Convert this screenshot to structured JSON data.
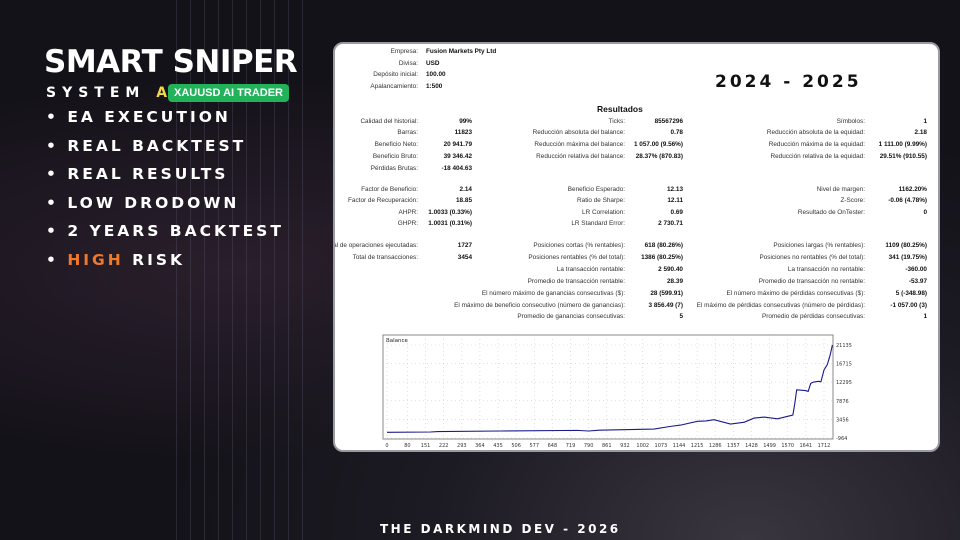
{
  "promo": {
    "title": "SMART SNIPER",
    "system": "SYSTEM",
    "ai": "AI",
    "badge": "XAUUSD AI TRADER",
    "bullets": [
      {
        "text": "EA EXECUTION"
      },
      {
        "text": "REAL BACKTEST"
      },
      {
        "text": "REAL RESULTS"
      },
      {
        "text": "LOW DRODOWN"
      },
      {
        "text": "2 YEARS BACKTEST"
      },
      {
        "hi": "HIGH",
        "text": " RISK"
      }
    ],
    "footer": "THE DARKMIND DEV - 2026",
    "accent": "#22b35a",
    "highlight": "#f07a2a"
  },
  "report": {
    "years": "2024 - 2025",
    "results_title": "Resultados",
    "header": [
      [
        "Empresa:",
        "Fusion Markets Pty Ltd"
      ],
      [
        "Divisa:",
        "USD"
      ],
      [
        "Depósito inicial:",
        "100.00"
      ],
      [
        "Apalancamiento:",
        "1:500"
      ]
    ],
    "col1": [
      [
        "Calidad del historial:",
        "99%"
      ],
      [
        "Barras:",
        "11823"
      ],
      [
        "Beneficio Neto:",
        "20 941.79"
      ],
      [
        "Beneficio Bruto:",
        "39 346.42"
      ],
      [
        "Pérdidas Brutas:",
        "-18 404.63"
      ],
      [
        "Factor de Beneficio:",
        "2.14"
      ],
      [
        "Factor de Recuperación:",
        "18.85"
      ],
      [
        "AHPR:",
        "1.0033 (0.33%)"
      ],
      [
        "GHPR:",
        "1.0031 (0.31%)"
      ],
      [
        "Total de operaciones ejecutadas:",
        "1727"
      ],
      [
        "Total de transacciones:",
        "3454"
      ]
    ],
    "col2": [
      [
        "Ticks:",
        "85567296"
      ],
      [
        "Reducción absoluta del balance:",
        "0.78"
      ],
      [
        "Reducción máxima del balance:",
        "1 057.00 (9.56%)"
      ],
      [
        "Reducción relativa del balance:",
        "28.37% (870.83)"
      ],
      [
        "Beneficio Esperado:",
        "12.13"
      ],
      [
        "Ratio de Sharpe:",
        "12.11"
      ],
      [
        "LR Correlation:",
        "0.69"
      ],
      [
        "LR Standard Error:",
        "2 730.71"
      ],
      [
        "Posiciones cortas (% rentables):",
        "618 (80.26%)"
      ],
      [
        "Posiciones rentables (% del total):",
        "1386 (80.25%)"
      ],
      [
        "La transacción rentable:",
        "2 590.40"
      ],
      [
        "Promedio de transacción rentable:",
        "28.39"
      ],
      [
        "El número máximo de ganancias consecutivas ($):",
        "28 (599.91)"
      ],
      [
        "El máximo de beneficio consecutivo (número de ganancias):",
        "3 856.49 (7)"
      ],
      [
        "Promedio de ganancias consecutivas:",
        "5"
      ]
    ],
    "col3": [
      [
        "Símbolos:",
        "1"
      ],
      [
        "Reducción absoluta de la equidad:",
        "2.18"
      ],
      [
        "Reducción máxima de la equidad:",
        "1 111.00 (9.99%)"
      ],
      [
        "Reducción relativa de la equidad:",
        "29.51% (910.55)"
      ],
      [
        "Nivel de margen:",
        "1162.20%"
      ],
      [
        "Z-Score:",
        "-0.06 (4.78%)"
      ],
      [
        "Resultado de OnTester:",
        "0"
      ],
      [
        "Posiciones largas (% rentables):",
        "1109 (80.25%)"
      ],
      [
        "Posiciones no rentables (% del total):",
        "341 (19.75%)"
      ],
      [
        "La transacción no rentable:",
        "-360.00"
      ],
      [
        "Promedio de transacción no rentable:",
        "-53.97"
      ],
      [
        "El número máximo de pérdidas consecutivas ($):",
        "5 (-348.98)"
      ],
      [
        "El máximo de pérdidas consecutivas (número de pérdidas):",
        "-1 057.00 (3)"
      ],
      [
        "Promedio de pérdidas consecutivas:",
        "1"
      ]
    ]
  },
  "chart_data": {
    "type": "line",
    "title": "Balance",
    "line_color": "#1a1a8c",
    "x_ticks": [
      0,
      80,
      151,
      222,
      293,
      364,
      435,
      506,
      577,
      648,
      719,
      790,
      861,
      932,
      1002,
      1073,
      1144,
      1215,
      1286,
      1357,
      1428,
      1499,
      1570,
      1641,
      1712
    ],
    "y_ticks": [
      21135,
      16715,
      12295,
      7876,
      3456,
      -964
    ],
    "xlim": [
      0,
      1750
    ],
    "ylim": [
      -964,
      21135
    ],
    "grid": true,
    "series": [
      {
        "x": [
          0,
          170,
          200,
          444,
          745,
          790,
          830,
          1046,
          1111,
          1150,
          1216,
          1250,
          1281,
          1346,
          1400,
          1438,
          1477,
          1530,
          1568,
          1590,
          1597,
          1605,
          1640,
          1650,
          1660,
          1670,
          1690,
          1700,
          1712,
          1725,
          1735,
          1745
        ],
        "y": [
          380,
          460,
          560,
          700,
          850,
          700,
          900,
          1170,
          1800,
          2100,
          3000,
          3100,
          3376,
          2350,
          2800,
          3770,
          4000,
          3600,
          4165,
          4500,
          7000,
          10480,
          10300,
          10100,
          12000,
          12300,
          12500,
          12400,
          15200,
          16500,
          18500,
          21135
        ]
      }
    ]
  }
}
